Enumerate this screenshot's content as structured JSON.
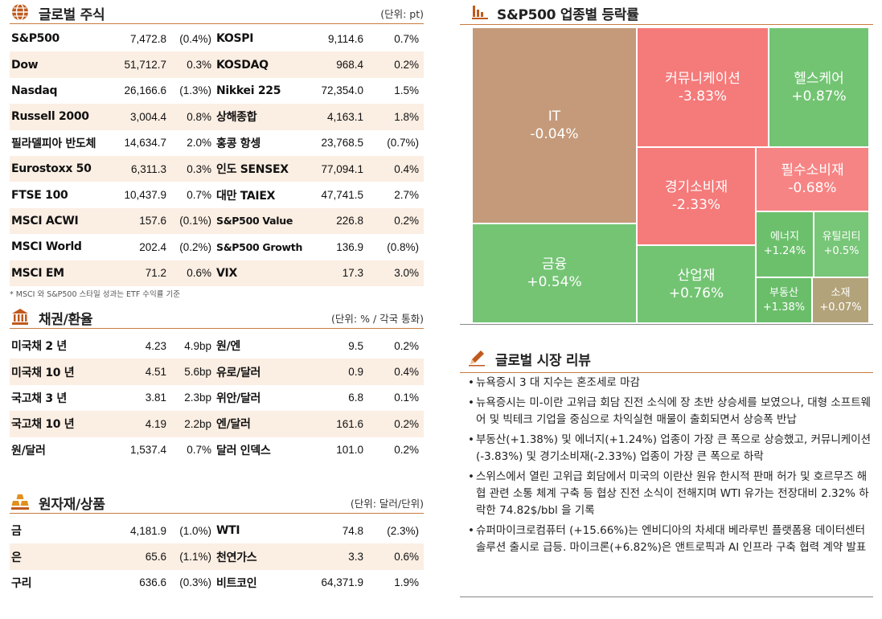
{
  "global": {
    "title": "글로벌 주식",
    "unit": "(단위: pt)",
    "rows": [
      [
        "S&P500",
        "7,472.8",
        "(0.4%)",
        "KOSPI",
        "9,114.6",
        "0.7%"
      ],
      [
        "Dow",
        "51,712.7",
        "0.3%",
        "KOSDAQ",
        "968.4",
        "0.2%"
      ],
      [
        "Nasdaq",
        "26,166.6",
        "(1.3%)",
        "Nikkei 225",
        "72,354.0",
        "1.5%"
      ],
      [
        "Russell 2000",
        "3,004.4",
        "0.8%",
        "상해종합",
        "4,163.1",
        "1.8%"
      ],
      [
        "필라델피아 반도체",
        "14,634.7",
        "2.0%",
        "홍콩 항셍",
        "23,768.5",
        "(0.7%)"
      ],
      [
        "Eurostoxx 50",
        "6,311.3",
        "0.3%",
        "인도 SENSEX",
        "77,094.1",
        "0.4%"
      ],
      [
        "FTSE 100",
        "10,437.9",
        "0.7%",
        "대만 TAIEX",
        "47,741.5",
        "2.7%"
      ],
      [
        "MSCI ACWI",
        "157.6",
        "(0.1%)",
        "S&P500 Value",
        "226.8",
        "0.2%"
      ],
      [
        "MSCI World",
        "202.4",
        "(0.2%)",
        "S&P500 Growth",
        "136.9",
        "(0.8%)"
      ],
      [
        "MSCI EM",
        "71.2",
        "0.6%",
        "VIX",
        "17.3",
        "3.0%"
      ]
    ],
    "note": "* MSCI 와 S&P500 스타일 성과는 ETF 수익률 기준"
  },
  "bonds": {
    "title": "채권/환율",
    "unit": "(단위: % / 각국 통화)",
    "rows": [
      [
        "미국채 2 년",
        "4.23",
        "4.9bp",
        "원/엔",
        "9.5",
        "0.2%"
      ],
      [
        "미국채 10 년",
        "4.51",
        "5.6bp",
        "유로/달러",
        "0.9",
        "0.4%"
      ],
      [
        "국고채 3 년",
        "3.81",
        "2.3bp",
        "위안/달러",
        "6.8",
        "0.1%"
      ],
      [
        "국고채 10 년",
        "4.19",
        "2.2bp",
        "엔/달러",
        "161.6",
        "0.2%"
      ],
      [
        "원/달러",
        "1,537.4",
        "0.7%",
        "달러 인덱스",
        "101.0",
        "0.2%"
      ]
    ]
  },
  "commod": {
    "title": "원자재/상품",
    "unit": "(단위: 달러/단위)",
    "rows": [
      [
        "금",
        "4,181.9",
        "(1.0%)",
        "WTI",
        "74.8",
        "(2.3%)"
      ],
      [
        "은",
        "65.6",
        "(1.1%)",
        "천연가스",
        "3.3",
        "0.6%"
      ],
      [
        "구리",
        "636.6",
        "(0.3%)",
        "비트코인",
        "64,371.9",
        "1.9%"
      ]
    ]
  },
  "sectors": {
    "title": "S&P500 업종별 등락률",
    "tiles": [
      {
        "name": "IT",
        "value": "-0.04%",
        "color": "#c49a7a"
      },
      {
        "name": "커뮤니케이션",
        "value": "-3.83%",
        "color": "#f57a7a"
      },
      {
        "name": "헬스케어",
        "value": "+0.87%",
        "color": "#72c472"
      },
      {
        "name": "경기소비재",
        "value": "-2.33%",
        "color": "#f57a7a"
      },
      {
        "name": "필수소비재",
        "value": "-0.68%",
        "color": "#f78484"
      },
      {
        "name": "금융",
        "value": "+0.54%",
        "color": "#74c474"
      },
      {
        "name": "산업재",
        "value": "+0.76%",
        "color": "#72c472"
      },
      {
        "name": "에너지",
        "value": "+1.24%",
        "color": "#6cc06c"
      },
      {
        "name": "유틸리티",
        "value": "+0.5%",
        "color": "#78c678"
      },
      {
        "name": "부동산",
        "value": "+1.38%",
        "color": "#6abe6a"
      },
      {
        "name": "소재",
        "value": "+0.07%",
        "color": "#b3a37a"
      }
    ]
  },
  "review": {
    "title": "글로벌 시장 리뷰",
    "items": [
      "뉴욕증시 3 대 지수는 혼조세로 마감",
      "뉴욕증시는 미-이란 고위급 회담 진전 소식에 장 초반 상승세를 보였으나, 대형 소프트웨어 및 빅테크 기업을 중심으로 차익실현 매물이 출회되면서 상승폭 반납",
      "부동산(+1.38%) 및 에너지(+1.24%) 업종이 가장 큰 폭으로 상승했고, 커뮤니케이션(-3.83%) 및 경기소비재(-2.33%) 업종이 가장 큰 폭으로 하락",
      "스위스에서 열린 고위급 회담에서 미국의 이란산 원유 한시적 판매 허가 및 호르무즈 해협 관련 소통 체계 구축 등 협상 진전 소식이 전해지며 WTI 유가는 전장대비 2.32% 하락한 74.82$/bbl 을 기록",
      "슈퍼마이크로컴퓨터 (+15.66%)는 엔비디아의 차세대 베라루빈 플랫폼용 데이터센터 솔루션 출시로 급등. 마이크론(+6.82%)은 앤트로픽과 AI 인프라 구축 협력 계약 발표"
    ]
  }
}
